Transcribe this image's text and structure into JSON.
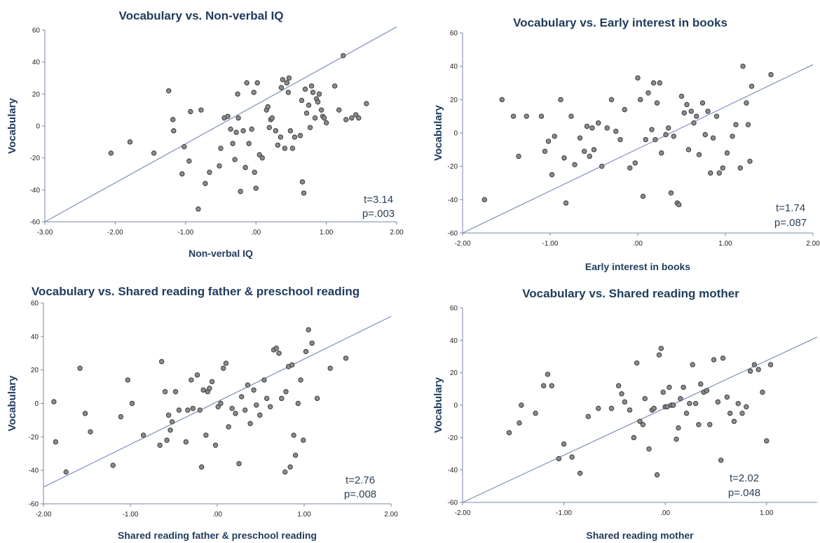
{
  "chart_data": [
    {
      "type": "scatter",
      "title": "Vocabulary vs. Non-verbal IQ",
      "xlabel": "Non-verbal IQ",
      "ylabel": "Vocabulary",
      "xlim": [
        -3,
        2
      ],
      "ylim": [
        -60,
        60
      ],
      "xticks": [
        -3,
        -2,
        -1,
        0,
        1,
        2
      ],
      "xtick_labels": [
        "-3.00",
        "-2.00",
        "-1.00",
        ".00",
        "1.00",
        "2.00"
      ],
      "yticks": [
        -60,
        -40,
        -20,
        0,
        20,
        40,
        60
      ],
      "ytick_labels": [
        "-60",
        "-40",
        "-20",
        "0",
        "20",
        "40",
        "60"
      ],
      "stats": [
        "t=3.14",
        "p=.003"
      ],
      "fit_line": {
        "x": [
          -3.0,
          2.0
        ],
        "y": [
          -60,
          62
        ]
      },
      "points": [
        [
          -2.06,
          -17
        ],
        [
          -1.79,
          -10
        ],
        [
          -1.45,
          -17
        ],
        [
          -1.24,
          22
        ],
        [
          -1.18,
          4
        ],
        [
          -1.17,
          -3
        ],
        [
          -1.05,
          -30
        ],
        [
          -1.02,
          -13
        ],
        [
          -0.95,
          -22
        ],
        [
          -0.93,
          9
        ],
        [
          -0.82,
          -52
        ],
        [
          -0.78,
          10
        ],
        [
          -0.72,
          -36
        ],
        [
          -0.66,
          -29
        ],
        [
          -0.52,
          -25
        ],
        [
          -0.5,
          -14
        ],
        [
          -0.45,
          5
        ],
        [
          -0.4,
          6
        ],
        [
          -0.36,
          -2
        ],
        [
          -0.33,
          -11
        ],
        [
          -0.3,
          -21
        ],
        [
          -0.28,
          -4
        ],
        [
          -0.26,
          20
        ],
        [
          -0.25,
          5
        ],
        [
          -0.22,
          -41
        ],
        [
          -0.18,
          -3
        ],
        [
          -0.15,
          -26
        ],
        [
          -0.13,
          27
        ],
        [
          -0.1,
          -11
        ],
        [
          -0.06,
          -2
        ],
        [
          -0.03,
          21
        ],
        [
          -0.02,
          -29
        ],
        [
          0.0,
          -39
        ],
        [
          0.02,
          27
        ],
        [
          0.05,
          -18
        ],
        [
          0.09,
          -20
        ],
        [
          0.15,
          10
        ],
        [
          0.17,
          12
        ],
        [
          0.19,
          -1
        ],
        [
          0.21,
          4
        ],
        [
          0.23,
          5
        ],
        [
          0.28,
          -3
        ],
        [
          0.31,
          -12
        ],
        [
          0.35,
          -7
        ],
        [
          0.36,
          24
        ],
        [
          0.38,
          29
        ],
        [
          0.41,
          -14
        ],
        [
          0.44,
          27
        ],
        [
          0.46,
          21
        ],
        [
          0.47,
          30
        ],
        [
          0.49,
          -3
        ],
        [
          0.52,
          -14
        ],
        [
          0.55,
          -7
        ],
        [
          0.63,
          -6
        ],
        [
          0.65,
          16
        ],
        [
          0.66,
          -35
        ],
        [
          0.68,
          -42
        ],
        [
          0.7,
          23
        ],
        [
          0.72,
          8
        ],
        [
          0.75,
          13
        ],
        [
          0.77,
          -1
        ],
        [
          0.79,
          25
        ],
        [
          0.81,
          21
        ],
        [
          0.84,
          5
        ],
        [
          0.86,
          17
        ],
        [
          0.88,
          15
        ],
        [
          0.9,
          20
        ],
        [
          0.93,
          10
        ],
        [
          0.95,
          6
        ],
        [
          0.97,
          5
        ],
        [
          1.0,
          2
        ],
        [
          1.12,
          25
        ],
        [
          1.18,
          10
        ],
        [
          1.24,
          44
        ],
        [
          1.28,
          4
        ],
        [
          1.36,
          5
        ],
        [
          1.42,
          7
        ],
        [
          1.46,
          5
        ],
        [
          1.57,
          14
        ]
      ]
    },
    {
      "type": "scatter",
      "title": "Vocabulary vs. Early interest in books",
      "xlabel": "Early interest in books",
      "ylabel": "Vocabulary",
      "xlim": [
        -2,
        2
      ],
      "ylim": [
        -60,
        60
      ],
      "xticks": [
        -2,
        -1,
        0,
        1,
        2
      ],
      "xtick_labels": [
        "-2.00",
        "-1.00",
        ".00",
        "1.00",
        "2.00"
      ],
      "yticks": [
        -60,
        -40,
        -20,
        0,
        20,
        40,
        60
      ],
      "ytick_labels": [
        "-60",
        "-40",
        "-20",
        "0",
        "20",
        "40",
        "60"
      ],
      "stats": [
        "t=1.74",
        "p=.087"
      ],
      "fit_line": {
        "x": [
          -2.0,
          2.0
        ],
        "y": [
          -60,
          41
        ]
      },
      "points": [
        [
          -1.75,
          -40
        ],
        [
          -1.55,
          20
        ],
        [
          -1.42,
          10
        ],
        [
          -1.36,
          -14
        ],
        [
          -1.27,
          10
        ],
        [
          -1.1,
          10
        ],
        [
          -1.06,
          -11
        ],
        [
          -1.02,
          -5
        ],
        [
          -0.98,
          -25
        ],
        [
          -0.95,
          -2
        ],
        [
          -0.88,
          20
        ],
        [
          -0.84,
          -15
        ],
        [
          -0.82,
          -42
        ],
        [
          -0.76,
          10
        ],
        [
          -0.72,
          -19
        ],
        [
          -0.66,
          -3
        ],
        [
          -0.61,
          -11
        ],
        [
          -0.58,
          4
        ],
        [
          -0.55,
          -14
        ],
        [
          -0.52,
          3
        ],
        [
          -0.5,
          -10
        ],
        [
          -0.45,
          6
        ],
        [
          -0.41,
          -20
        ],
        [
          -0.35,
          3
        ],
        [
          -0.3,
          20
        ],
        [
          -0.25,
          1
        ],
        [
          -0.2,
          -4
        ],
        [
          -0.15,
          14
        ],
        [
          -0.09,
          -21
        ],
        [
          -0.03,
          -18
        ],
        [
          0.0,
          33
        ],
        [
          0.03,
          20
        ],
        [
          0.06,
          -38
        ],
        [
          0.09,
          -4
        ],
        [
          0.12,
          24
        ],
        [
          0.16,
          2
        ],
        [
          0.18,
          30
        ],
        [
          0.2,
          -4
        ],
        [
          0.22,
          18
        ],
        [
          0.25,
          30
        ],
        [
          0.27,
          -12
        ],
        [
          0.32,
          -1
        ],
        [
          0.35,
          3
        ],
        [
          0.38,
          -36
        ],
        [
          0.41,
          -2
        ],
        [
          0.45,
          -42
        ],
        [
          0.47,
          -43
        ],
        [
          0.5,
          22
        ],
        [
          0.53,
          12
        ],
        [
          0.56,
          17
        ],
        [
          0.58,
          -10
        ],
        [
          0.61,
          13
        ],
        [
          0.64,
          6
        ],
        [
          0.67,
          10
        ],
        [
          0.7,
          -13
        ],
        [
          0.74,
          18
        ],
        [
          0.77,
          -1
        ],
        [
          0.8,
          13
        ],
        [
          0.83,
          -24
        ],
        [
          0.86,
          -3
        ],
        [
          0.9,
          10
        ],
        [
          0.93,
          -24
        ],
        [
          0.97,
          -21
        ],
        [
          1.02,
          -12
        ],
        [
          1.08,
          -2
        ],
        [
          1.12,
          5
        ],
        [
          1.17,
          -21
        ],
        [
          1.2,
          40
        ],
        [
          1.24,
          18
        ],
        [
          1.26,
          5
        ],
        [
          1.28,
          -17
        ],
        [
          1.3,
          28
        ],
        [
          1.52,
          35
        ]
      ]
    },
    {
      "type": "scatter",
      "title": "Vocabulary vs. Shared reading father & preschool reading",
      "xlabel": "Shared reading father & preschool reading",
      "ylabel": "Vocabulary",
      "xlim": [
        -2,
        2
      ],
      "ylim": [
        -60,
        60
      ],
      "xticks": [
        -2,
        -1,
        0,
        1,
        2
      ],
      "xtick_labels": [
        "-2.00",
        "-1.00",
        ".00",
        "1.00",
        "2.00"
      ],
      "yticks": [
        -60,
        -40,
        -20,
        0,
        20,
        40,
        60
      ],
      "ytick_labels": [
        "-60",
        "-40",
        "-20",
        "0",
        "20",
        "40",
        "60"
      ],
      "stats": [
        "t=2.76",
        "p=.008"
      ],
      "fit_line": {
        "x": [
          -2.0,
          2.0
        ],
        "y": [
          -50,
          52
        ]
      },
      "points": [
        [
          -1.88,
          1
        ],
        [
          -1.86,
          -23
        ],
        [
          -1.74,
          -41
        ],
        [
          -1.58,
          21
        ],
        [
          -1.52,
          -6
        ],
        [
          -1.46,
          -17
        ],
        [
          -1.2,
          -37
        ],
        [
          -1.11,
          -8
        ],
        [
          -1.03,
          14
        ],
        [
          -0.98,
          0
        ],
        [
          -0.85,
          -19
        ],
        [
          -0.66,
          -25
        ],
        [
          -0.64,
          25
        ],
        [
          -0.6,
          7
        ],
        [
          -0.58,
          -22
        ],
        [
          -0.56,
          -7
        ],
        [
          -0.54,
          -16
        ],
        [
          -0.52,
          -11
        ],
        [
          -0.48,
          7
        ],
        [
          -0.44,
          -4
        ],
        [
          -0.36,
          -23
        ],
        [
          -0.34,
          -4
        ],
        [
          -0.3,
          14
        ],
        [
          -0.28,
          -3
        ],
        [
          -0.23,
          17
        ],
        [
          -0.2,
          -4
        ],
        [
          -0.18,
          -38
        ],
        [
          -0.16,
          8
        ],
        [
          -0.13,
          -19
        ],
        [
          -0.11,
          7
        ],
        [
          -0.09,
          9
        ],
        [
          -0.06,
          13
        ],
        [
          -0.02,
          -25
        ],
        [
          0.01,
          -2
        ],
        [
          0.04,
          0
        ],
        [
          0.07,
          21
        ],
        [
          0.1,
          24
        ],
        [
          0.13,
          -14
        ],
        [
          0.17,
          -3
        ],
        [
          0.21,
          -6
        ],
        [
          0.25,
          -36
        ],
        [
          0.28,
          4
        ],
        [
          0.32,
          -4
        ],
        [
          0.35,
          11
        ],
        [
          0.38,
          -12
        ],
        [
          0.42,
          8
        ],
        [
          0.45,
          -1
        ],
        [
          0.49,
          -7
        ],
        [
          0.54,
          14
        ],
        [
          0.57,
          3
        ],
        [
          0.61,
          -2
        ],
        [
          0.65,
          32
        ],
        [
          0.68,
          33
        ],
        [
          0.71,
          30
        ],
        [
          0.74,
          3
        ],
        [
          0.78,
          -41
        ],
        [
          0.79,
          7
        ],
        [
          0.82,
          22
        ],
        [
          0.84,
          -38
        ],
        [
          0.86,
          23
        ],
        [
          0.88,
          -19
        ],
        [
          0.9,
          -31
        ],
        [
          0.93,
          0
        ],
        [
          0.96,
          14
        ],
        [
          0.99,
          -22
        ],
        [
          1.02,
          31
        ],
        [
          1.05,
          44
        ],
        [
          1.09,
          36
        ],
        [
          1.15,
          3
        ],
        [
          1.3,
          21
        ],
        [
          1.48,
          27
        ]
      ]
    },
    {
      "type": "scatter",
      "title": "Vocabulary vs. Shared reading mother",
      "xlabel": "Shared reading mother",
      "ylabel": "Vocabulary",
      "xlim": [
        -2,
        1.5
      ],
      "ylim": [
        -60,
        60
      ],
      "xticks": [
        -2,
        -1,
        0,
        1
      ],
      "xtick_labels": [
        "-2.00",
        "-1.00",
        ".00",
        "1.00"
      ],
      "yticks": [
        -60,
        -40,
        -20,
        0,
        20,
        40,
        60
      ],
      "ytick_labels": [
        "-60",
        "-40",
        "-20",
        "0",
        "20",
        "40",
        "60"
      ],
      "stats": [
        "t=2.02",
        "p=.048"
      ],
      "fit_line": {
        "x": [
          -2.0,
          1.5
        ],
        "y": [
          -60,
          42
        ]
      },
      "points": [
        [
          -1.54,
          -17
        ],
        [
          -1.44,
          -11
        ],
        [
          -1.42,
          0
        ],
        [
          -1.28,
          -5
        ],
        [
          -1.2,
          12
        ],
        [
          -1.16,
          19
        ],
        [
          -1.12,
          12
        ],
        [
          -1.05,
          -33
        ],
        [
          -1.0,
          -24
        ],
        [
          -0.92,
          -32
        ],
        [
          -0.84,
          -42
        ],
        [
          -0.76,
          -7
        ],
        [
          -0.66,
          -2
        ],
        [
          -0.53,
          -2
        ],
        [
          -0.46,
          12
        ],
        [
          -0.43,
          7
        ],
        [
          -0.4,
          2
        ],
        [
          -0.35,
          -3
        ],
        [
          -0.31,
          -20
        ],
        [
          -0.28,
          26
        ],
        [
          -0.25,
          -10
        ],
        [
          -0.22,
          -12
        ],
        [
          -0.2,
          4
        ],
        [
          -0.16,
          -27
        ],
        [
          -0.13,
          -3
        ],
        [
          -0.11,
          -2
        ],
        [
          -0.08,
          -43
        ],
        [
          -0.06,
          31
        ],
        [
          -0.04,
          35
        ],
        [
          -0.02,
          8
        ],
        [
          0.0,
          -1
        ],
        [
          0.02,
          -1
        ],
        [
          0.04,
          11
        ],
        [
          0.06,
          0
        ],
        [
          0.08,
          0
        ],
        [
          0.11,
          -21
        ],
        [
          0.13,
          -14
        ],
        [
          0.15,
          4
        ],
        [
          0.18,
          11
        ],
        [
          0.21,
          -5
        ],
        [
          0.24,
          1
        ],
        [
          0.27,
          25
        ],
        [
          0.3,
          1
        ],
        [
          0.33,
          -12
        ],
        [
          0.35,
          13
        ],
        [
          0.38,
          8
        ],
        [
          0.41,
          9
        ],
        [
          0.44,
          -12
        ],
        [
          0.48,
          28
        ],
        [
          0.52,
          2
        ],
        [
          0.55,
          -34
        ],
        [
          0.57,
          29
        ],
        [
          0.61,
          5
        ],
        [
          0.64,
          -5
        ],
        [
          0.68,
          -10
        ],
        [
          0.72,
          1
        ],
        [
          0.76,
          -5
        ],
        [
          0.8,
          -1
        ],
        [
          0.84,
          21
        ],
        [
          0.88,
          25
        ],
        [
          0.92,
          22
        ],
        [
          0.96,
          8
        ],
        [
          1.0,
          -22
        ],
        [
          1.04,
          25
        ]
      ]
    }
  ]
}
